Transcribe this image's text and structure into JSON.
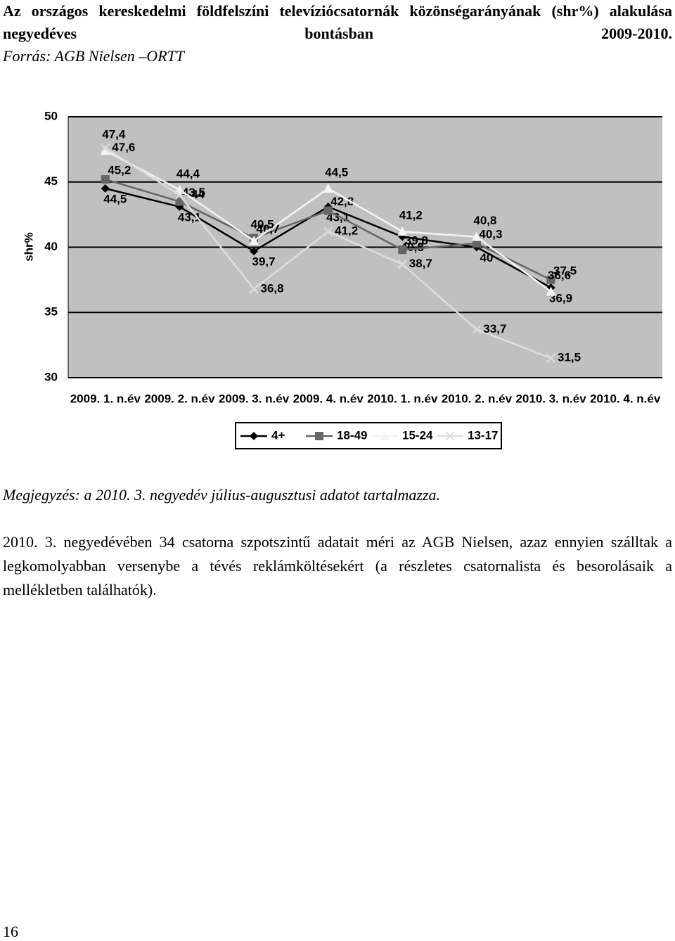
{
  "header": {
    "title": "Az országos kereskedelmi földfelszíni televíziócsatornák közönségarányának (shr%) alakulása negyedéves bontásban 2009-2010.",
    "source": "Forrás: AGB Nielsen –ORTT"
  },
  "chart_data": {
    "type": "line",
    "y_label": "shr%",
    "categories": [
      "2009. 1. n.év",
      "2009. 2. n.év",
      "2009. 3. n.év",
      "2009. 4. n.év",
      "2010. 1. n.év",
      "2010. 2. n.év",
      "2010. 3. n.év",
      "2010. 4. n.év"
    ],
    "ylim": [
      30,
      50
    ],
    "yticks": [
      30,
      35,
      40,
      45,
      50
    ],
    "grid": true,
    "legend": "bottom",
    "series": [
      {
        "name": "4+",
        "color": "#000000",
        "marker": "diamond",
        "values": [
          44.5,
          43.1,
          39.7,
          43.1,
          40.8,
          40,
          36.9,
          null
        ],
        "value_labels": [
          "44,5",
          "43,1",
          "39,7",
          "43,1",
          "40,8",
          "40",
          "36,9",
          null
        ]
      },
      {
        "name": "18-49",
        "color": "#666666",
        "marker": "square",
        "values": [
          45.2,
          43.5,
          40.7,
          42.8,
          39.8,
          40.3,
          37.5,
          null
        ],
        "value_labels": [
          "45,2",
          "43,5",
          "40,7",
          "42,8",
          "39,8",
          "40,3",
          "37,5",
          null
        ]
      },
      {
        "name": "15-24",
        "color": "#f4f4f4",
        "marker": "triangle",
        "values": [
          47.4,
          44.4,
          40.5,
          44.5,
          41.2,
          40.8,
          36.6,
          null
        ],
        "value_labels": [
          "47,4",
          "44,4",
          "40,5",
          "44,5",
          "41,2",
          "40,8",
          "36,6",
          null
        ]
      },
      {
        "name": "13-17",
        "color": "#dddddd",
        "marker": "x",
        "values": [
          47.6,
          44,
          36.8,
          41.2,
          38.7,
          33.7,
          31.5,
          null
        ],
        "value_labels": [
          "47,6",
          "44",
          "36,8",
          "41,2",
          "38,7",
          "33,7",
          "31,5",
          null
        ]
      }
    ]
  },
  "note": "Megjegyzés: a 2010. 3. negyedév július-augusztusi adatot tartalmazza.",
  "body": "2010. 3. negyedévében 34 csatorna szpotszintű adatait méri az AGB Nielsen, azaz ennyien szálltak a legkomolyabban versenybe a tévés reklámköltésekért (a részletes csatornalista és besorolásaik a mellékletben találhatók).",
  "page_number": "16"
}
